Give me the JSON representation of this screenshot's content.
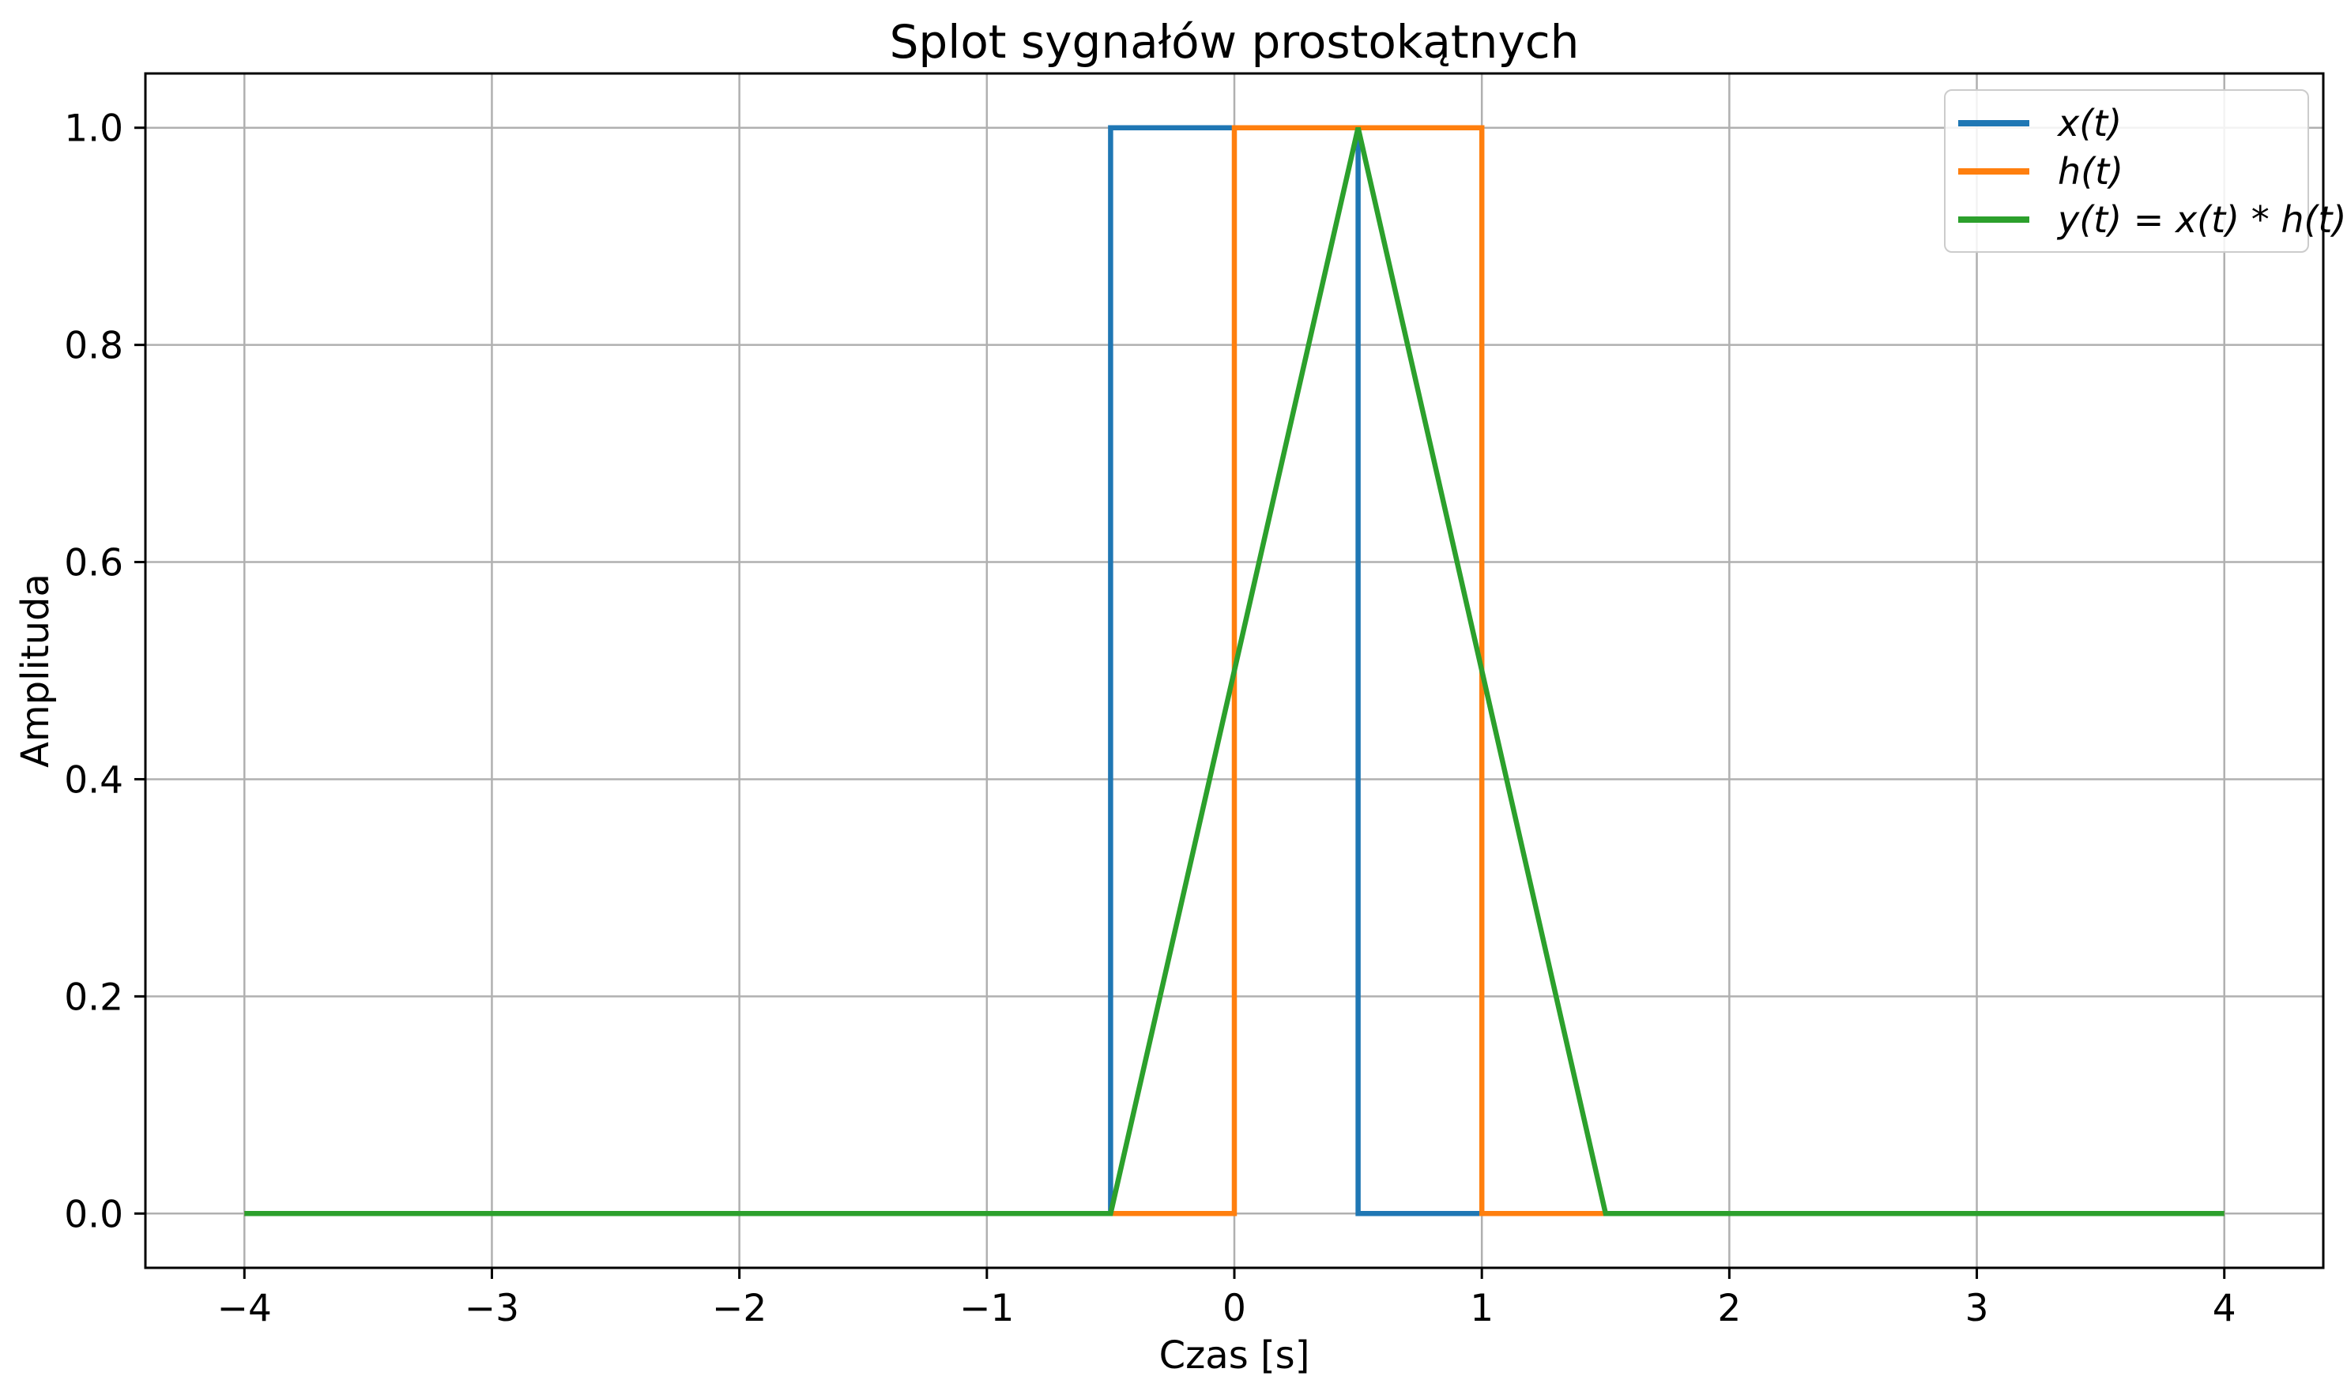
{
  "chart_data": {
    "type": "line",
    "title": "Splot sygnałów prostokątnych",
    "xlabel": "Czas [s]",
    "ylabel": "Amplituda",
    "xlim": [
      -4.4,
      4.4
    ],
    "ylim": [
      -0.05,
      1.05
    ],
    "xticks": [
      -4,
      -3,
      -2,
      -1,
      0,
      1,
      2,
      3,
      4
    ],
    "xtick_labels": [
      "−4",
      "−3",
      "−2",
      "−1",
      "0",
      "1",
      "2",
      "3",
      "4"
    ],
    "yticks": [
      0.0,
      0.2,
      0.4,
      0.6,
      0.8,
      1.0
    ],
    "ytick_labels": [
      "0.0",
      "0.2",
      "0.4",
      "0.6",
      "0.8",
      "1.0"
    ],
    "grid": true,
    "grid_color": "#b0b0b0",
    "spine_color": "#000000",
    "legend_position": "upper right",
    "series": [
      {
        "name": "x(t)",
        "color": "#1f77b4",
        "points": [
          [
            -4,
            0
          ],
          [
            -0.5,
            0
          ],
          [
            -0.5,
            1
          ],
          [
            0.5,
            1
          ],
          [
            0.5,
            0
          ],
          [
            4,
            0
          ]
        ]
      },
      {
        "name": "h(t)",
        "color": "#ff7f0e",
        "points": [
          [
            -4,
            0
          ],
          [
            0,
            0
          ],
          [
            0,
            1
          ],
          [
            1,
            1
          ],
          [
            1,
            0
          ],
          [
            4,
            0
          ]
        ]
      },
      {
        "name": "y(t) = x(t) * h(t)",
        "color": "#2ca02c",
        "points": [
          [
            -4,
            0
          ],
          [
            -0.5,
            0
          ],
          [
            0.5,
            1
          ],
          [
            1.5,
            0
          ],
          [
            4,
            0
          ]
        ]
      }
    ]
  }
}
